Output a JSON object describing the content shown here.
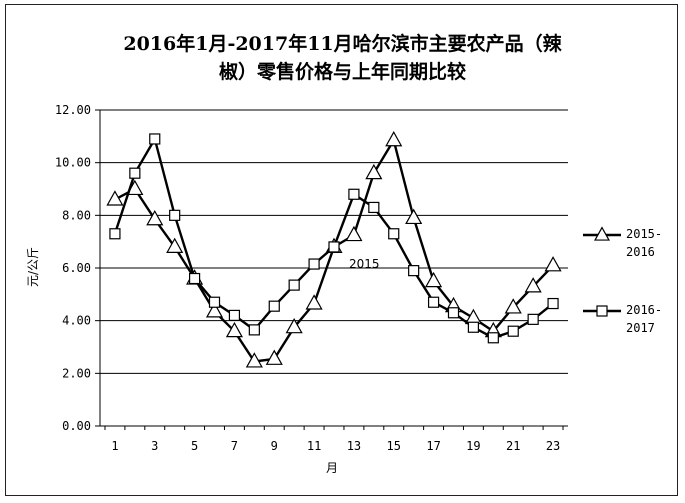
{
  "chart_data": {
    "type": "line",
    "title_lines": [
      "2016年1月-2017年11月哈尔滨市主要农产品（辣",
      "椒）零售价格与上年同期比较"
    ],
    "xlabel": "月",
    "ylabel": "元/公斤",
    "annotation": "2015",
    "x": [
      1,
      2,
      3,
      4,
      5,
      6,
      7,
      8,
      9,
      10,
      11,
      12,
      13,
      14,
      15,
      16,
      17,
      18,
      19,
      20,
      21,
      22,
      23
    ],
    "x_tick_labels": [
      "1",
      "3",
      "5",
      "7",
      "9",
      "11",
      "13",
      "15",
      "17",
      "19",
      "21",
      "23"
    ],
    "y_tick_labels": [
      "0.00",
      "2.00",
      "4.00",
      "6.00",
      "8.00",
      "10.00",
      "12.00"
    ],
    "ylim": [
      0,
      12
    ],
    "grid": true,
    "legend_position": "right",
    "series": [
      {
        "name_lines": [
          "2015-",
          "2016"
        ],
        "marker": "triangle",
        "values": [
          8.6,
          9.0,
          7.85,
          6.8,
          5.6,
          4.35,
          3.6,
          2.45,
          2.55,
          3.75,
          4.65,
          6.8,
          7.25,
          9.6,
          10.85,
          7.9,
          5.5,
          4.55,
          4.1,
          3.6,
          4.5,
          5.3,
          6.1
        ]
      },
      {
        "name_lines": [
          "2016-",
          "2017"
        ],
        "marker": "square",
        "values": [
          7.3,
          9.6,
          10.9,
          8.0,
          5.6,
          4.7,
          4.2,
          3.65,
          4.55,
          5.35,
          6.15,
          6.8,
          8.8,
          8.3,
          7.3,
          5.9,
          4.7,
          4.3,
          3.75,
          3.35,
          3.6,
          4.05,
          4.65
        ]
      }
    ]
  }
}
